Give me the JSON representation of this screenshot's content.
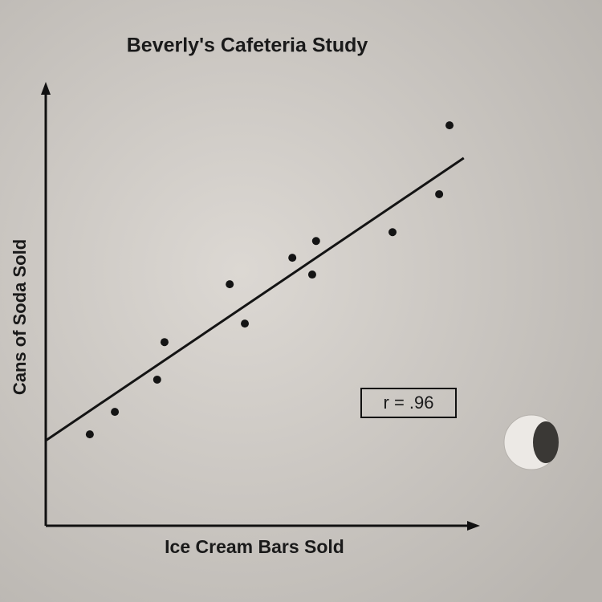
{
  "chart_data": {
    "type": "scatter",
    "title": "Beverly's Cafeteria Study",
    "x_label": "Ice Cream Bars Sold",
    "y_label": "Cans of Soda Sold",
    "x": [
      10.2,
      16.0,
      25.8,
      27.5,
      42.6,
      46.1,
      57.1,
      61.7,
      62.6,
      80.3,
      91.1,
      93.5
    ],
    "y": [
      20.7,
      25.8,
      33.1,
      41.6,
      54.7,
      45.8,
      60.7,
      56.9,
      64.5,
      66.5,
      75.1,
      90.7
    ],
    "color": "#141414",
    "trendline": {
      "x": [
        0,
        96.8
      ],
      "y": [
        19.3,
        83.3
      ]
    },
    "annotation": "r = .96",
    "xlim": [
      0,
      100
    ],
    "ylim": [
      0,
      100
    ]
  }
}
